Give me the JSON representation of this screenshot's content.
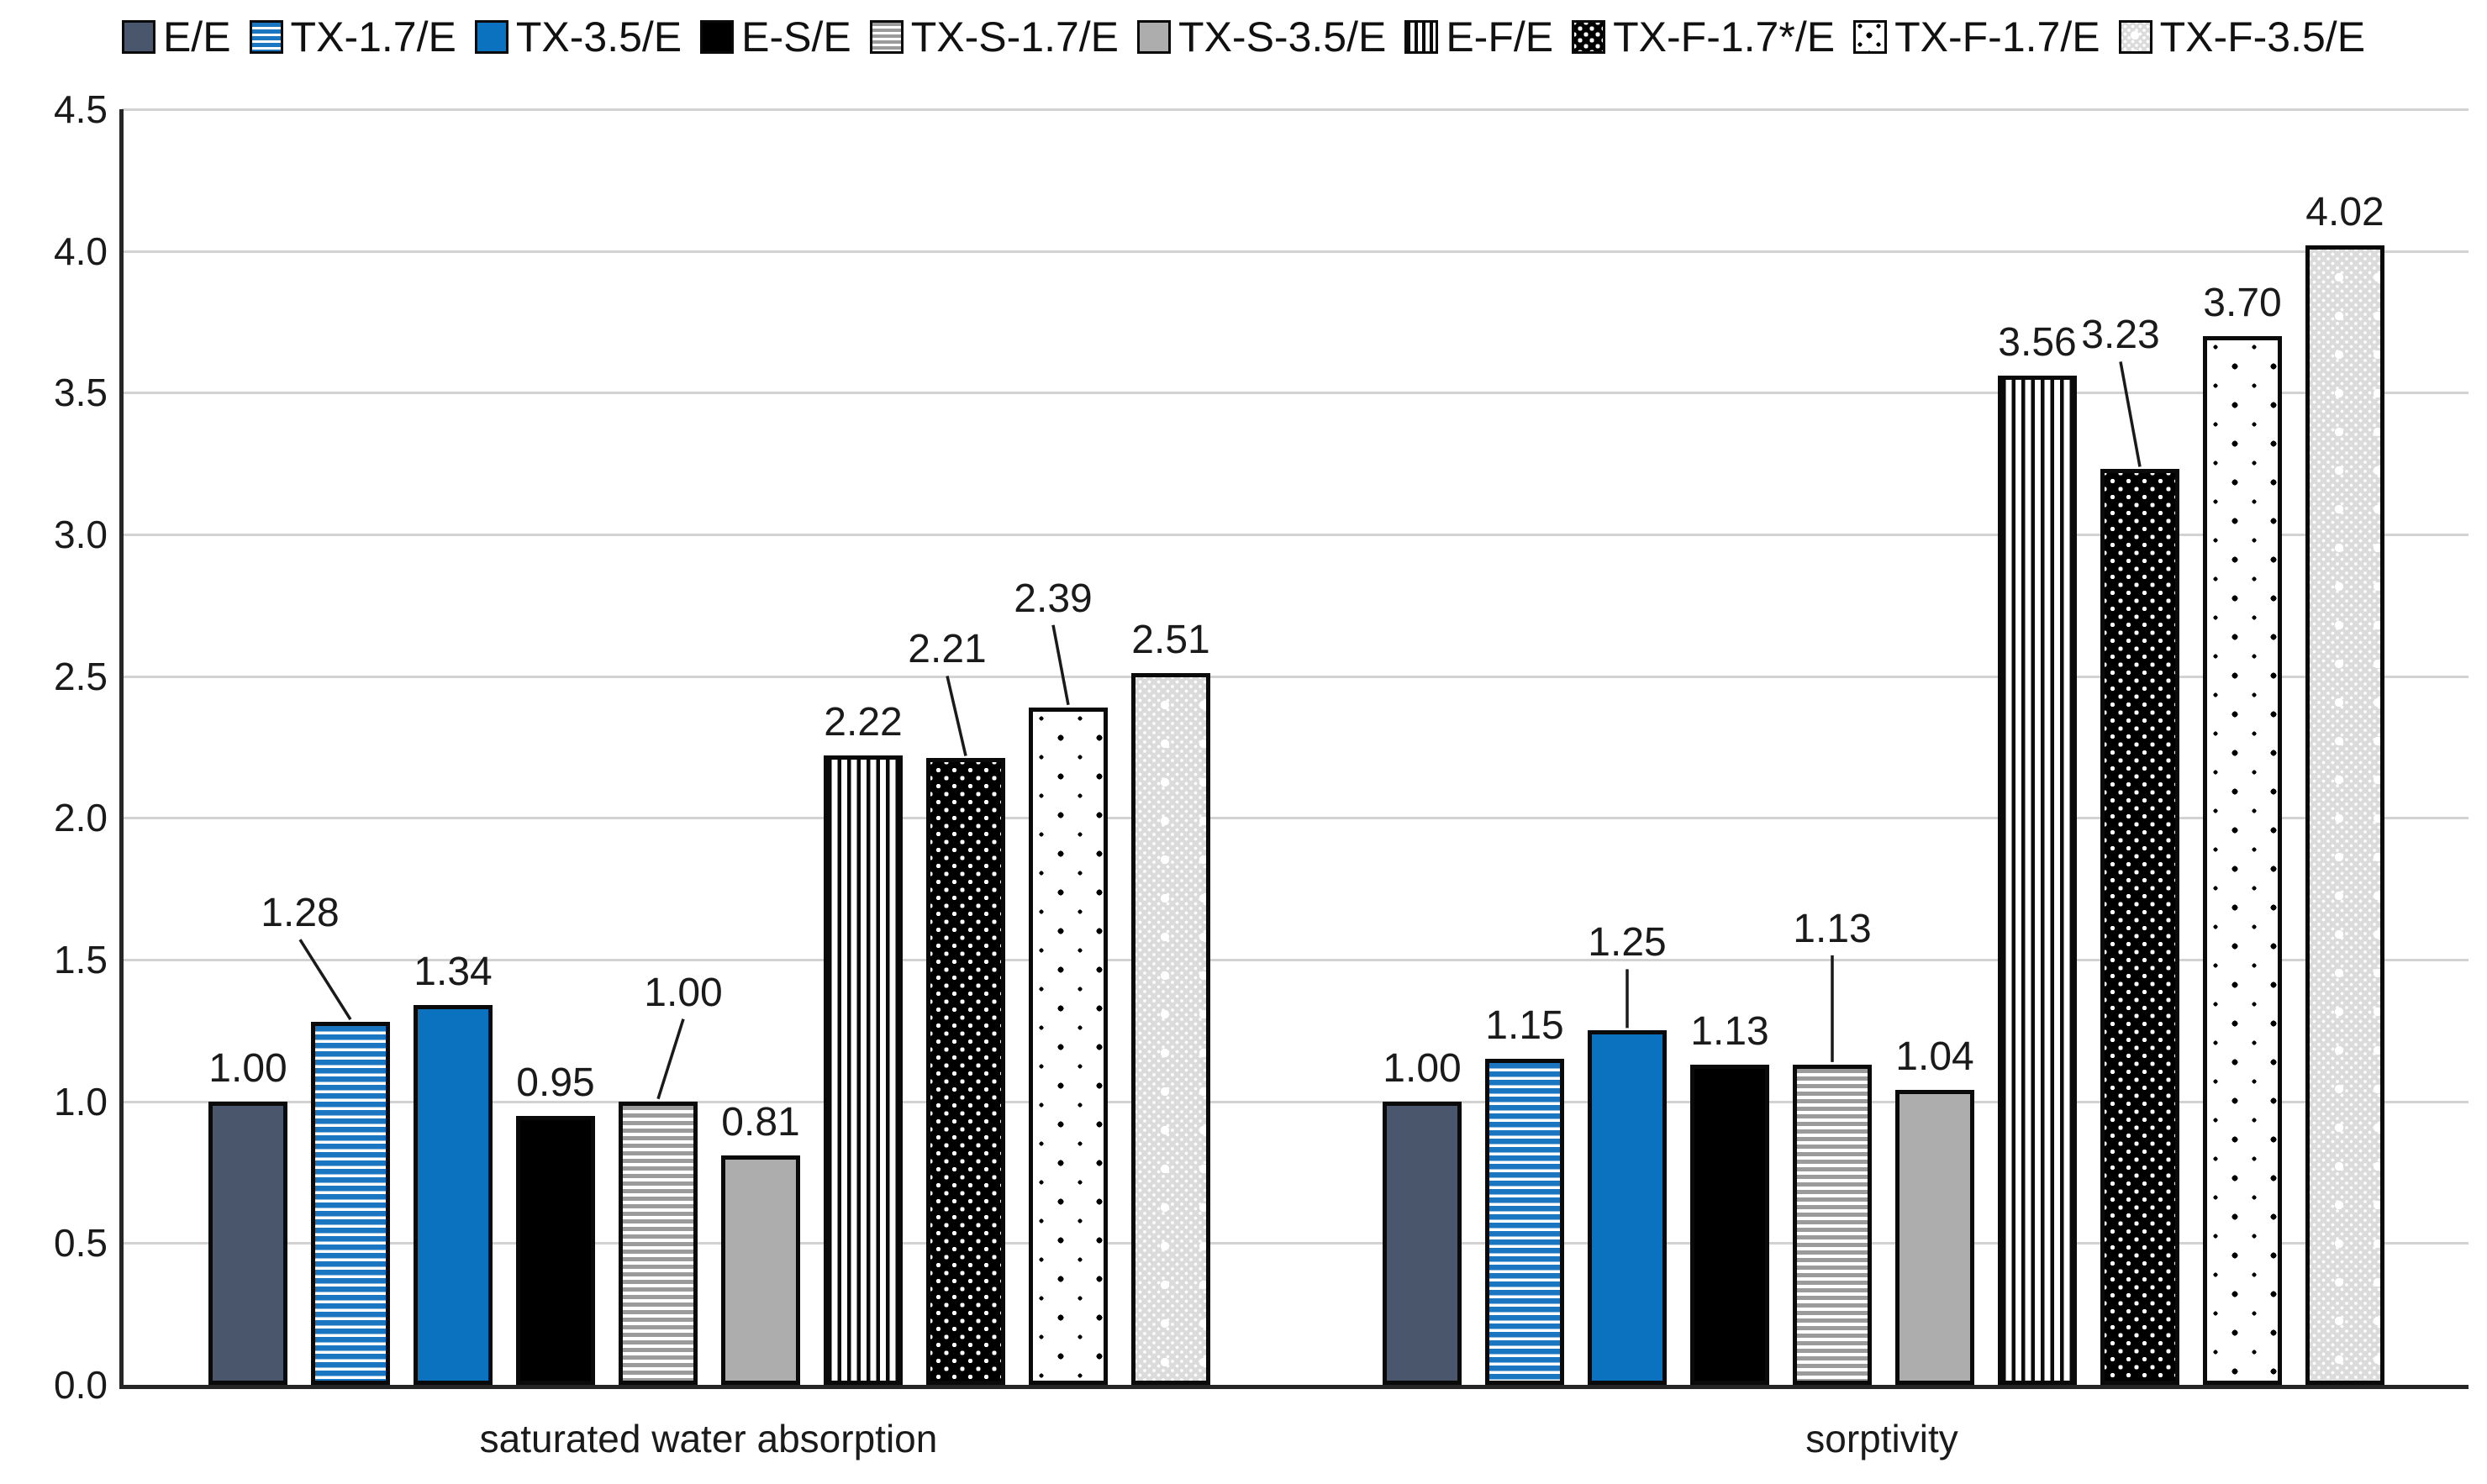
{
  "legend": {
    "position": "top",
    "items": [
      {
        "label": "E/E",
        "pattern": "solid-slate",
        "color": "#4a566b"
      },
      {
        "label": "TX-1.7/E",
        "pattern": "hstripes-blue",
        "color": "#1b76c1"
      },
      {
        "label": "TX-3.5/E",
        "pattern": "solid-blue",
        "color": "#0b72bf"
      },
      {
        "label": "E-S/E",
        "pattern": "solid-black",
        "color": "#000000"
      },
      {
        "label": "TX-S-1.7/E",
        "pattern": "hstripes-gray",
        "color": "#9b9b9b"
      },
      {
        "label": "TX-S-3.5/E",
        "pattern": "solid-gray",
        "color": "#adadad"
      },
      {
        "label": "E-F/E",
        "pattern": "vstripes-black",
        "color": "#0a0a0a"
      },
      {
        "label": "TX-F-1.7*/E",
        "pattern": "dots-white-on-black",
        "color": "#000000"
      },
      {
        "label": "TX-F-1.7/E",
        "pattern": "dots-black-on-white",
        "color": "#ffffff"
      },
      {
        "label": "TX-F-3.5/E",
        "pattern": "dots-gray",
        "color": "#dbdbdb"
      }
    ]
  },
  "chart_data": {
    "type": "bar",
    "title": "",
    "xlabel": "",
    "ylabel": "",
    "grid": "horizontal",
    "ylim": [
      0,
      4.5
    ],
    "ytick_step": 0.5,
    "yticks": [
      "0.0",
      "0.5",
      "1.0",
      "1.5",
      "2.0",
      "2.5",
      "3.0",
      "3.5",
      "4.0",
      "4.5"
    ],
    "categories": [
      "saturated water absorption",
      "sorptivity"
    ],
    "series": [
      {
        "name": "E/E",
        "pattern": "solid-slate",
        "values": [
          1.0,
          1.0
        ],
        "labels": [
          "1.00",
          "1.00"
        ],
        "label_offsets": [
          null,
          null
        ]
      },
      {
        "name": "TX-1.7/E",
        "pattern": "hstripes-blue",
        "values": [
          1.28,
          1.15
        ],
        "labels": [
          "1.28",
          "1.15"
        ],
        "label_offsets": [
          [
            -60,
            -90
          ],
          null
        ]
      },
      {
        "name": "TX-3.5/E",
        "pattern": "solid-blue",
        "values": [
          1.34,
          1.25
        ],
        "labels": [
          "1.34",
          "1.25"
        ],
        "label_offsets": [
          null,
          [
            0,
            -65
          ]
        ]
      },
      {
        "name": "E-S/E",
        "pattern": "solid-black",
        "values": [
          0.95,
          1.13
        ],
        "labels": [
          "0.95",
          "1.13"
        ],
        "label_offsets": [
          null,
          null
        ]
      },
      {
        "name": "TX-S-1.7/E",
        "pattern": "hstripes-gray",
        "values": [
          1.0,
          1.13
        ],
        "labels": [
          "1.00",
          "1.13"
        ],
        "label_offsets": [
          [
            30,
            -90
          ],
          [
            0,
            -122
          ]
        ]
      },
      {
        "name": "TX-S-3.5/E",
        "pattern": "solid-gray",
        "values": [
          0.81,
          1.04
        ],
        "labels": [
          "0.81",
          "1.04"
        ],
        "label_offsets": [
          null,
          null
        ]
      },
      {
        "name": "E-F/E",
        "pattern": "vstripes-black",
        "values": [
          2.22,
          3.56
        ],
        "labels": [
          "2.22",
          "3.56"
        ],
        "label_offsets": [
          null,
          null
        ]
      },
      {
        "name": "TX-F-1.7*/E",
        "pattern": "dots-white-on-black",
        "values": [
          2.21,
          3.23
        ],
        "labels": [
          "2.21",
          "3.23"
        ],
        "label_offsets": [
          [
            -22,
            -90
          ],
          [
            -23,
            -120
          ]
        ]
      },
      {
        "name": "TX-F-1.7/E",
        "pattern": "dots-black-on-white",
        "values": [
          2.39,
          3.7
        ],
        "labels": [
          "2.39",
          "3.70"
        ],
        "label_offsets": [
          [
            -18,
            -90
          ],
          null
        ]
      },
      {
        "name": "TX-F-3.5/E",
        "pattern": "dots-gray",
        "values": [
          2.51,
          4.02
        ],
        "labels": [
          "2.51",
          "4.02"
        ],
        "label_offsets": [
          null,
          null
        ]
      }
    ]
  },
  "colors": {
    "gridline": "#d2d2d2",
    "axis": "#262626",
    "text": "#1a1a1a",
    "leader_line": "#1a1a1a"
  }
}
